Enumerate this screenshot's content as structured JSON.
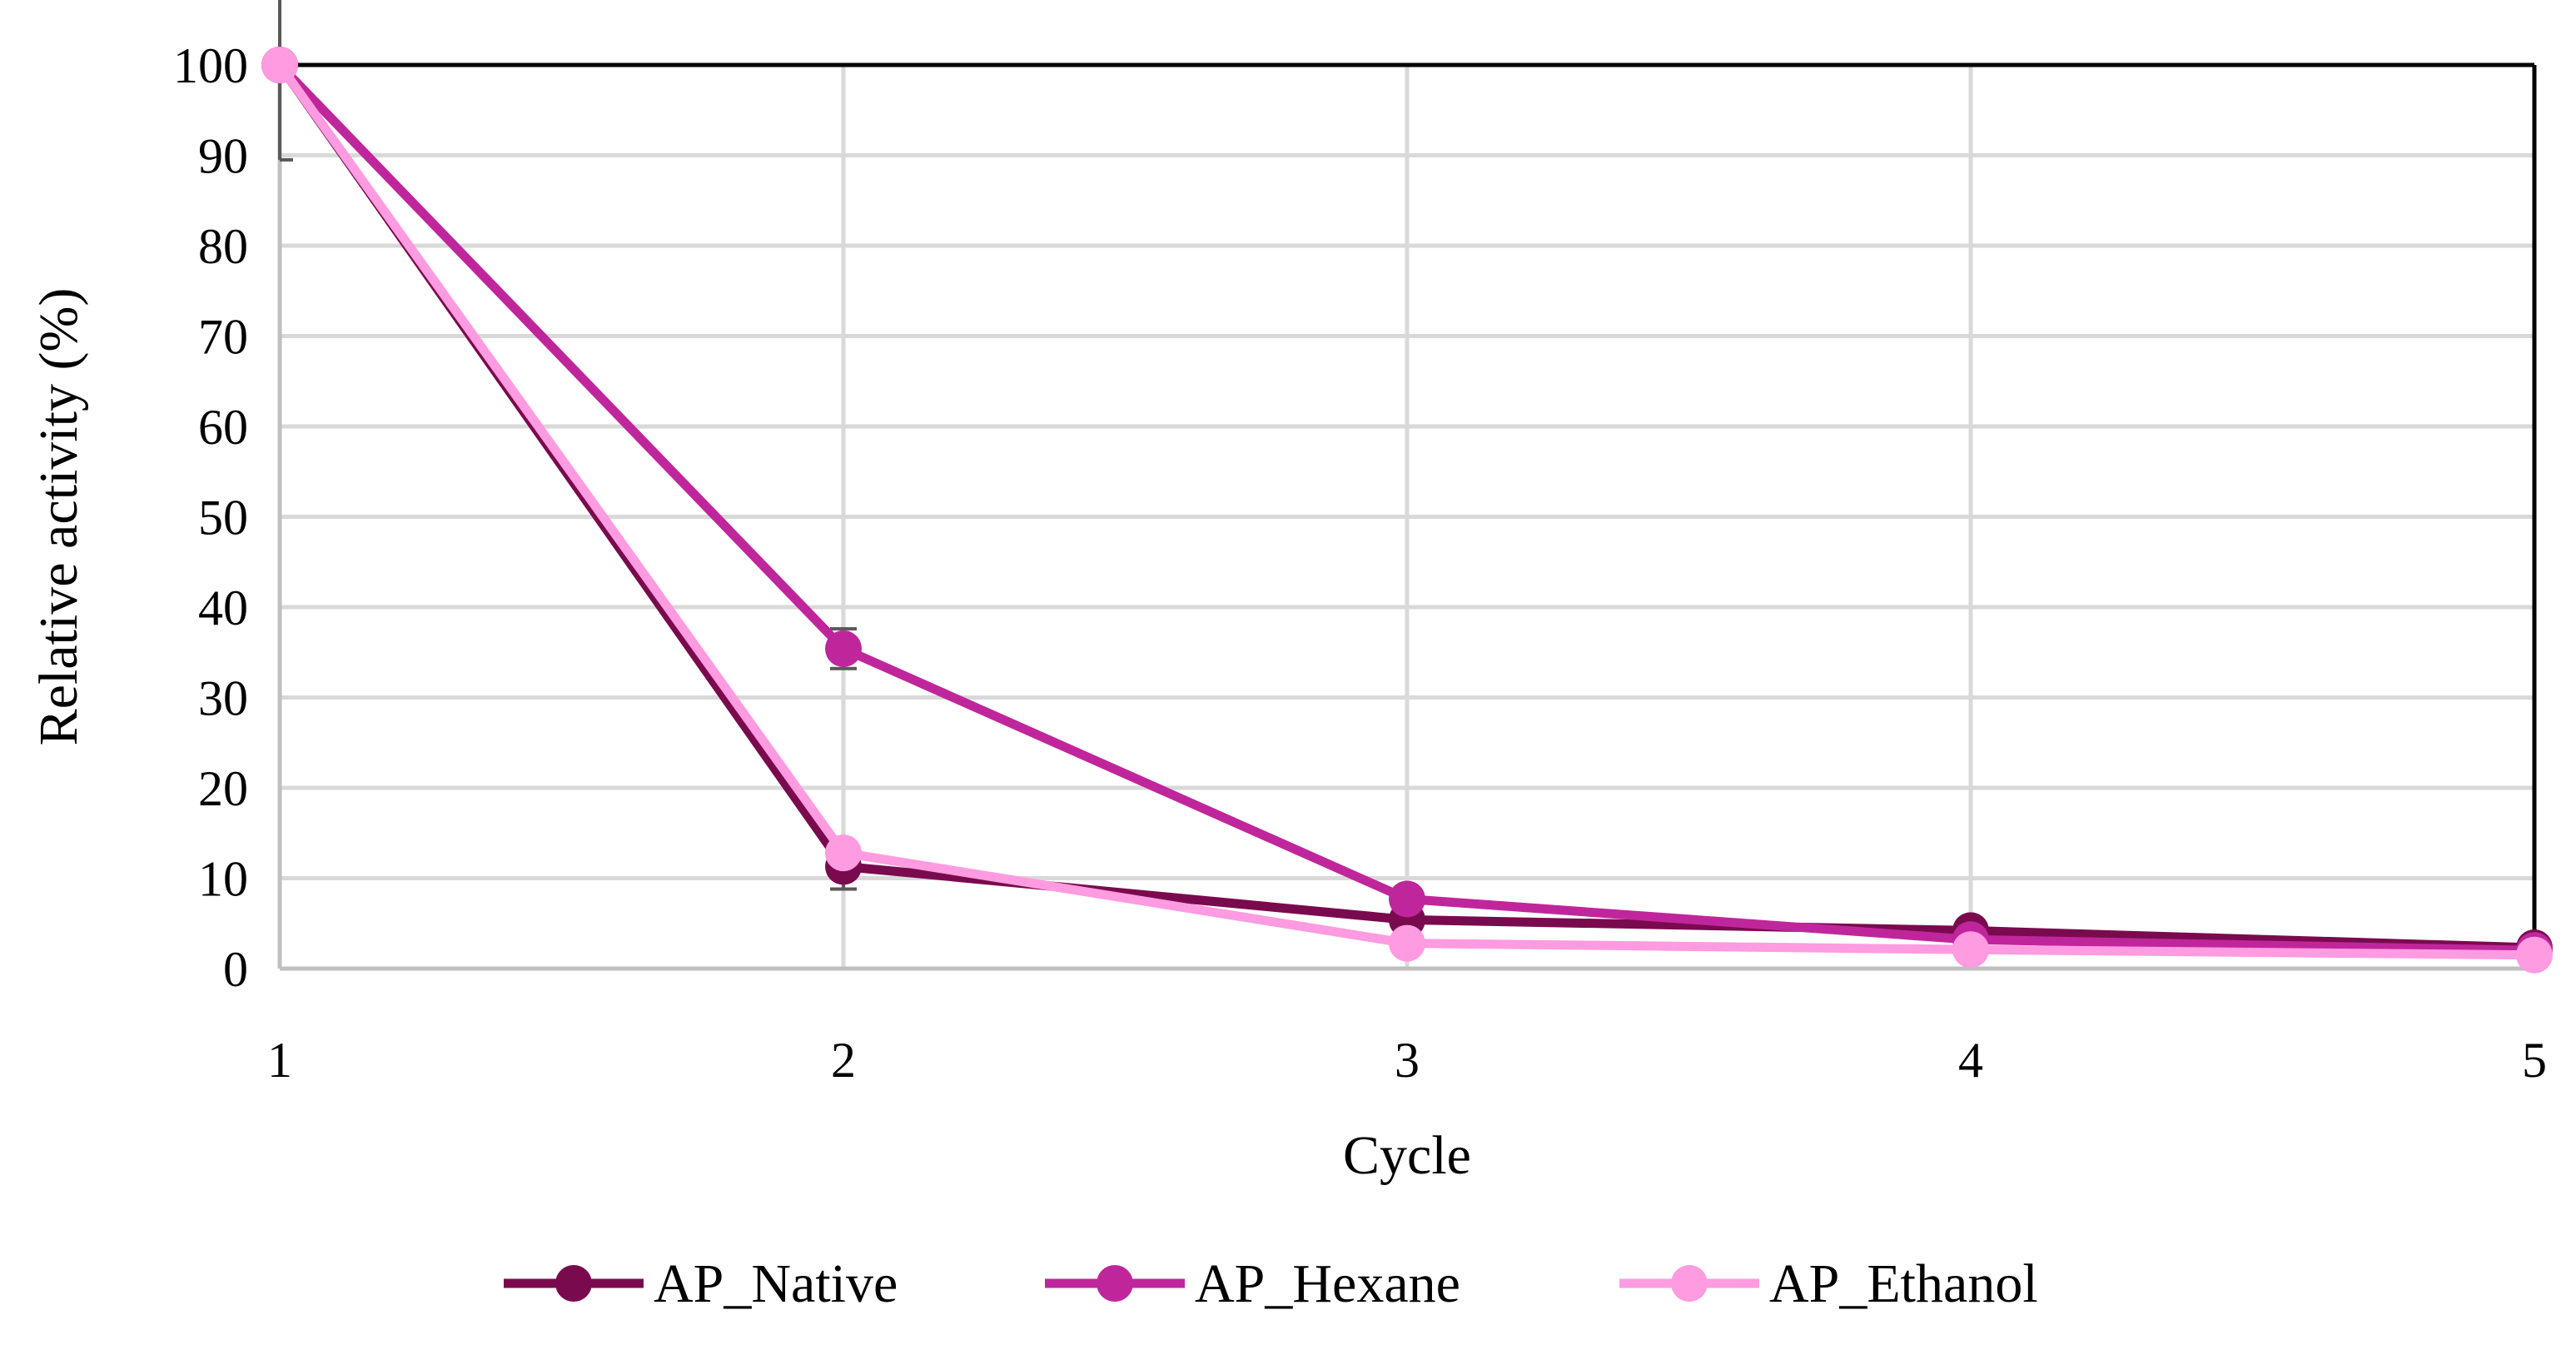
{
  "chart_data": {
    "type": "line",
    "title": "",
    "xlabel": "Cycle",
    "ylabel": "Relative activity (%)",
    "x": [
      1,
      2,
      3,
      4,
      5
    ],
    "xlim": [
      1,
      5
    ],
    "ylim": [
      0,
      100
    ],
    "x_ticks": [
      "1",
      "2",
      "3",
      "4",
      "5"
    ],
    "y_ticks": [
      "0",
      "10",
      "20",
      "30",
      "40",
      "50",
      "60",
      "70",
      "80",
      "90",
      "100"
    ],
    "grid": true,
    "legend_position": "bottom",
    "series": [
      {
        "name": "AP_Native",
        "color": "#7a0a4e",
        "values": [
          100,
          11.3,
          5.4,
          4.2,
          2.3
        ],
        "error": [
          0,
          2.5,
          0,
          0,
          0
        ]
      },
      {
        "name": "AP_Hexane",
        "color": "#c0269c",
        "values": [
          100,
          35.4,
          7.7,
          3.2,
          2.0
        ],
        "error": [
          0,
          2.2,
          0,
          0,
          0
        ]
      },
      {
        "name": "AP_Ethanol",
        "color": "#ff9be0",
        "values": [
          100,
          12.8,
          2.8,
          2.1,
          1.5
        ],
        "error": [
          10.5,
          0,
          0,
          0,
          0
        ]
      }
    ]
  }
}
